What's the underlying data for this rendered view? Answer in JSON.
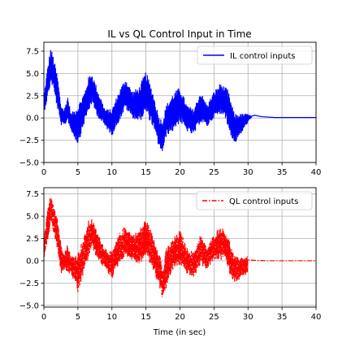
{
  "chart_data": [
    {
      "type": "line",
      "title": "IL vs QL Control Input in Time",
      "xlabel": "",
      "ylabel": "",
      "xlim": [
        0,
        40
      ],
      "ylim": [
        -5.0,
        8.5
      ],
      "xticks": [
        "0",
        "5",
        "10",
        "15",
        "20",
        "25",
        "30",
        "35",
        "40"
      ],
      "yticks": [
        "−5.0",
        "−2.5",
        "0.0",
        "2.5",
        "5.0",
        "7.5"
      ],
      "grid": true,
      "legend_position": "top-right",
      "series": [
        {
          "name": "IL control inputs",
          "color": "#0000ff",
          "style": "solid",
          "envelope": {
            "t": [
              0,
              0.5,
              1.0,
              1.3,
              2.0,
              2.5,
              3.0,
              3.5,
              4.0,
              5.0,
              6.0,
              6.5,
              7.0,
              8.0,
              9.0,
              10.0,
              11.0,
              12.0,
              13.0,
              14.0,
              15.0,
              16.0,
              17.0,
              17.5,
              18.0,
              19.0,
              20.0,
              21.0,
              22.0,
              23.0,
              24.0,
              25.0,
              26.0,
              26.5,
              27.0,
              28.0,
              29.0,
              30.0,
              30.5
            ],
            "low": [
              0.5,
              2.0,
              3.8,
              3.5,
              1.0,
              -0.8,
              -1.0,
              -0.3,
              -1.5,
              -3.0,
              -0.5,
              0.5,
              1.5,
              0,
              -1.0,
              -2.0,
              -0.5,
              1.0,
              0,
              -0.5,
              0.5,
              -1.0,
              -3.5,
              -4.0,
              -2.0,
              -1.5,
              -0.5,
              -1.5,
              -2.0,
              -0.5,
              -1.0,
              0,
              0.3,
              0.5,
              -1.0,
              -3.0,
              -1.8,
              -0.5,
              0
            ],
            "high": [
              2.5,
              5.5,
              7.9,
              7.2,
              4.8,
              1.5,
              1.0,
              2.5,
              0.5,
              1.5,
              3.0,
              4.5,
              5.2,
              3.0,
              1.0,
              1.0,
              3.0,
              4.5,
              3.0,
              3.5,
              5.3,
              3.0,
              0,
              0,
              1.5,
              2.8,
              3.5,
              1.5,
              1.0,
              3.0,
              1.5,
              3.0,
              4.0,
              3.5,
              3.3,
              0.5,
              0.5,
              0.5,
              0.2
            ]
          },
          "tail": {
            "t": [
              30.5,
              31.0,
              32.0,
              34.0,
              40.0
            ],
            "y": [
              0.2,
              0.3,
              0.15,
              0.05,
              0.05
            ]
          }
        }
      ]
    },
    {
      "type": "line",
      "title": "",
      "xlabel": "Time (in sec)",
      "ylabel": "",
      "xlim": [
        0,
        40
      ],
      "ylim": [
        -5.2,
        8.2
      ],
      "xticks": [
        "0",
        "5",
        "10",
        "15",
        "20",
        "25",
        "30",
        "35",
        "40"
      ],
      "yticks": [
        "−5.0",
        "−2.5",
        "0.0",
        "2.5",
        "5.0",
        "7.5"
      ],
      "grid": true,
      "legend_position": "top-right",
      "series": [
        {
          "name": "QL control inputs",
          "color": "#ff0000",
          "style": "dashdot",
          "envelope": {
            "t": [
              0,
              0.5,
              1.0,
              1.3,
              2.0,
              2.5,
              3.0,
              3.5,
              4.0,
              5.0,
              6.0,
              6.5,
              7.0,
              8.0,
              9.0,
              10.0,
              11.0,
              12.0,
              13.0,
              14.0,
              15.0,
              16.0,
              16.5,
              17.0,
              17.5,
              18.0,
              19.0,
              20.0,
              21.0,
              22.0,
              23.0,
              24.0,
              25.0,
              26.0,
              26.5,
              27.0,
              28.0,
              29.0,
              30.0
            ],
            "low": [
              0,
              2.0,
              4.0,
              3.5,
              1.0,
              -1.5,
              -1.0,
              -1.5,
              -1.5,
              -3.8,
              -1.0,
              0,
              1.5,
              0,
              -1.0,
              -2.0,
              -0.5,
              0.5,
              0,
              -0.5,
              0.5,
              -1.0,
              -2.0,
              -3.0,
              -4.5,
              -3.0,
              -1.0,
              -0.5,
              -1.5,
              -2.0,
              -0.5,
              -1.0,
              0,
              0,
              0.5,
              -1.0,
              -2.5,
              -2.0,
              -1.5
            ],
            "high": [
              2.5,
              5.5,
              7.5,
              7.0,
              5.0,
              2.0,
              1.0,
              2.0,
              0.5,
              1.0,
              3.0,
              4.5,
              4.8,
              3.0,
              1.5,
              1.0,
              3.0,
              4.0,
              3.0,
              3.5,
              4.8,
              3.0,
              2.0,
              1.0,
              -1.0,
              1.5,
              2.5,
              3.5,
              1.5,
              1.0,
              3.0,
              1.5,
              3.0,
              4.0,
              3.5,
              3.0,
              0.5,
              0.5,
              0.5
            ]
          },
          "tail": {
            "t": [
              30.0,
              31.0,
              33.0,
              40.0
            ],
            "y": [
              0.1,
              0.05,
              0.0,
              0.0
            ]
          }
        }
      ]
    }
  ]
}
